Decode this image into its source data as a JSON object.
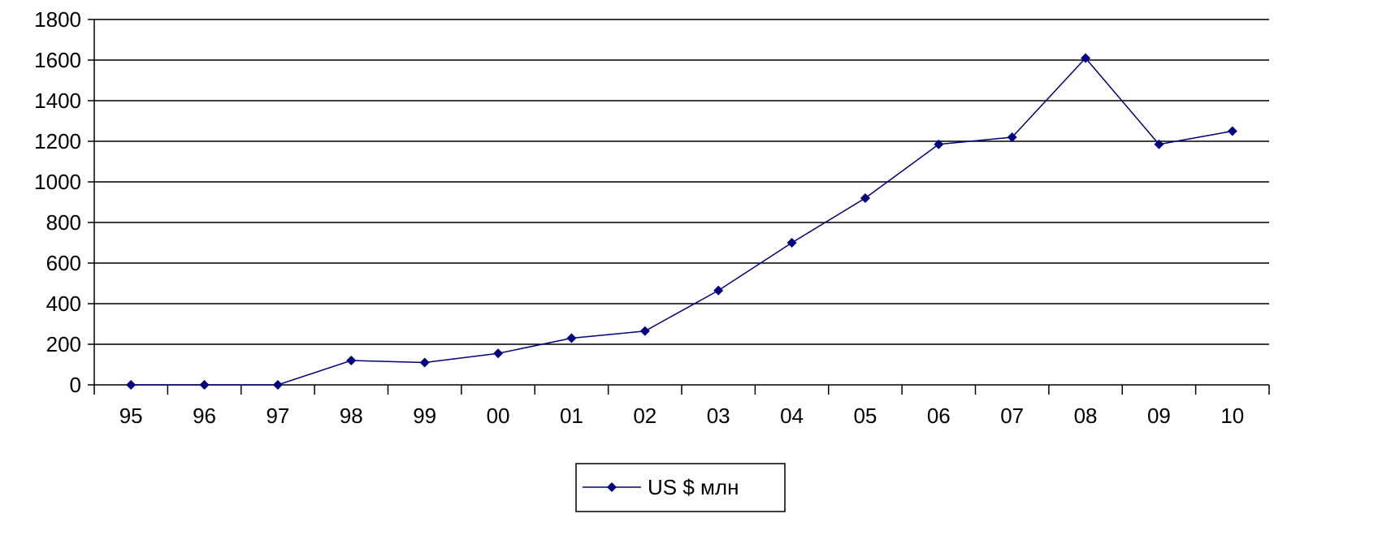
{
  "chart_data": {
    "type": "line",
    "title": "",
    "xlabel": "",
    "ylabel": "",
    "categories": [
      "95",
      "96",
      "97",
      "98",
      "99",
      "00",
      "01",
      "02",
      "03",
      "04",
      "05",
      "06",
      "07",
      "08",
      "09",
      "10"
    ],
    "series": [
      {
        "name": "US $ млн",
        "values": [
          0,
          0,
          0,
          120,
          110,
          155,
          230,
          265,
          465,
          700,
          920,
          1185,
          1220,
          1610,
          1185,
          1250
        ]
      }
    ],
    "ylim": [
      0,
      1800
    ],
    "yticks": [
      0,
      200,
      400,
      600,
      800,
      1000,
      1200,
      1400,
      1600,
      1800
    ],
    "grid": "horizontal",
    "legend_position": "bottom",
    "colors": {
      "series": "#000080",
      "grid": "#000000",
      "axis": "#000000"
    },
    "marker": "diamond"
  }
}
